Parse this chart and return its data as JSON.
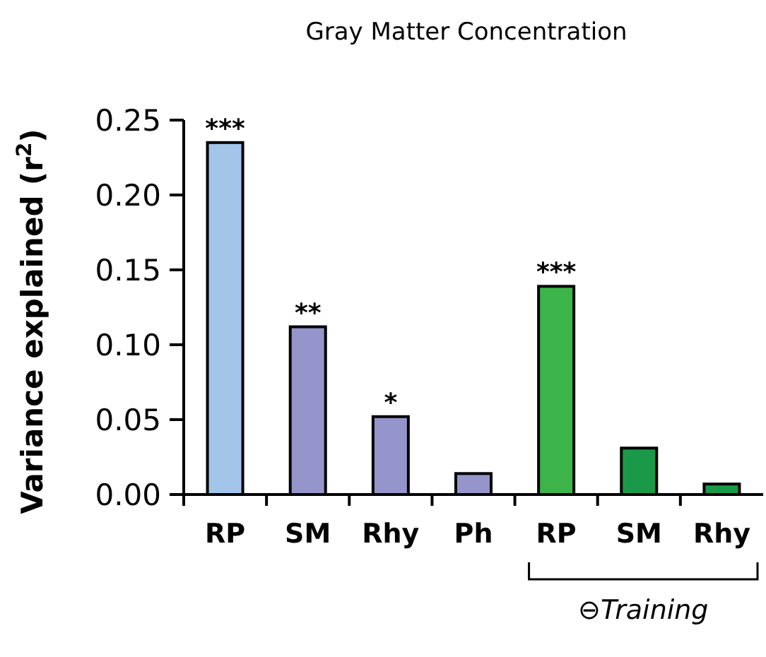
{
  "chart_data": {
    "type": "bar",
    "title": "Gray Matter Concentration",
    "ylabel": "Variance explained (r$^{2}$)",
    "categories": [
      "RP",
      "SM",
      "Rhy",
      "Ph",
      "RP",
      "SM",
      "Rhy"
    ],
    "values": [
      0.235,
      0.112,
      0.052,
      0.014,
      0.139,
      0.031,
      0.007
    ],
    "colors": [
      "#a3c5e9",
      "#9595cb",
      "#9595cb",
      "#9595cb",
      "#3cb44a",
      "#1a9a48",
      "#1a9a48"
    ],
    "value_labels": [
      "***",
      "**",
      "*",
      null,
      "***",
      null,
      null
    ],
    "annotations": [
      "⊖Training"
    ],
    "ylim": [
      0,
      0.25
    ],
    "yticks": [
      {
        "value": 0,
        "label": "0.00"
      },
      {
        "value": 0.05,
        "label": "0.05"
      },
      {
        "value": 0.1,
        "label": "0.10"
      },
      {
        "value": 0.15,
        "label": "0.15"
      },
      {
        "value": 0.2,
        "label": "0.20"
      },
      {
        "value": 0.25,
        "label": "0.25"
      }
    ],
    "grid": false
  }
}
